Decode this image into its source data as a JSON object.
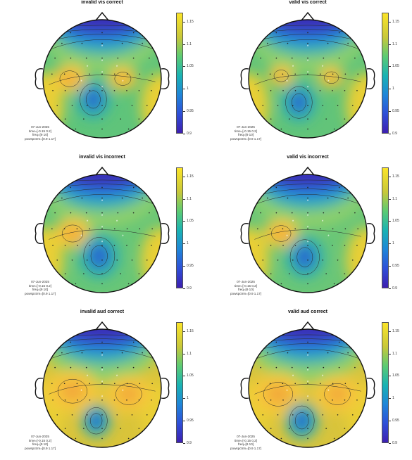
{
  "chart_data": [
    {
      "type": "heatmap",
      "subtype": "topoplot",
      "title": "invalid vis correct",
      "info": [
        "07-Jun-2025",
        "time=[-0.15 0.2]",
        "freq=[9 10]",
        "powspctrm=[0.9 1.17]"
      ],
      "clim": [
        0.9,
        1.17
      ],
      "colorbar_ticks": [
        0.9,
        0.95,
        1,
        1.05,
        1.1,
        1.15
      ]
    },
    {
      "type": "heatmap",
      "subtype": "topoplot",
      "title": "valid vis correct",
      "info": [
        "07-Jun-2025",
        "time=[-0.15 0.2]",
        "freq=[9 10]",
        "powspctrm=[0.9 1.17]"
      ],
      "clim": [
        0.9,
        1.17
      ],
      "colorbar_ticks": [
        0.9,
        0.95,
        1,
        1.05,
        1.1,
        1.15
      ]
    },
    {
      "type": "heatmap",
      "subtype": "topoplot",
      "title": "invalid vis incorrect",
      "info": [
        "07-Jun-2025",
        "time=[-0.15 0.2]",
        "freq=[9 10]",
        "powspctrm=[0.9 1.17]"
      ],
      "clim": [
        0.9,
        1.17
      ],
      "colorbar_ticks": [
        0.9,
        0.95,
        1,
        1.05,
        1.1,
        1.15
      ]
    },
    {
      "type": "heatmap",
      "subtype": "topoplot",
      "title": "valid vis incorrect",
      "info": [
        "07-Jun-2025",
        "time=[-0.15 0.2]",
        "freq=[9 10]",
        "powspctrm=[0.9 1.17]"
      ],
      "clim": [
        0.9,
        1.17
      ],
      "colorbar_ticks": [
        0.9,
        0.95,
        1,
        1.05,
        1.1,
        1.15
      ]
    },
    {
      "type": "heatmap",
      "subtype": "topoplot",
      "title": "invalid aud correct",
      "info": [
        "07-Jun-2025",
        "time=[-0.15 0.2]",
        "freq=[9 10]",
        "powspctrm=[0.9 1.17]"
      ],
      "clim": [
        0.9,
        1.17
      ],
      "colorbar_ticks": [
        0.9,
        0.95,
        1,
        1.05,
        1.1,
        1.15
      ]
    },
    {
      "type": "heatmap",
      "subtype": "topoplot",
      "title": "valid aud correct",
      "info": [
        "07-Jun-2025",
        "time=[-0.15 0.2]",
        "freq=[9 10]",
        "powspctrm=[0.9 1.17]"
      ],
      "clim": [
        0.9,
        1.17
      ],
      "colorbar_ticks": [
        0.9,
        0.95,
        1,
        1.05,
        1.1,
        1.15
      ]
    }
  ],
  "colors": {
    "low": "#3d1fb0",
    "mid": "#1ab3b3",
    "high": "#fbe428"
  }
}
